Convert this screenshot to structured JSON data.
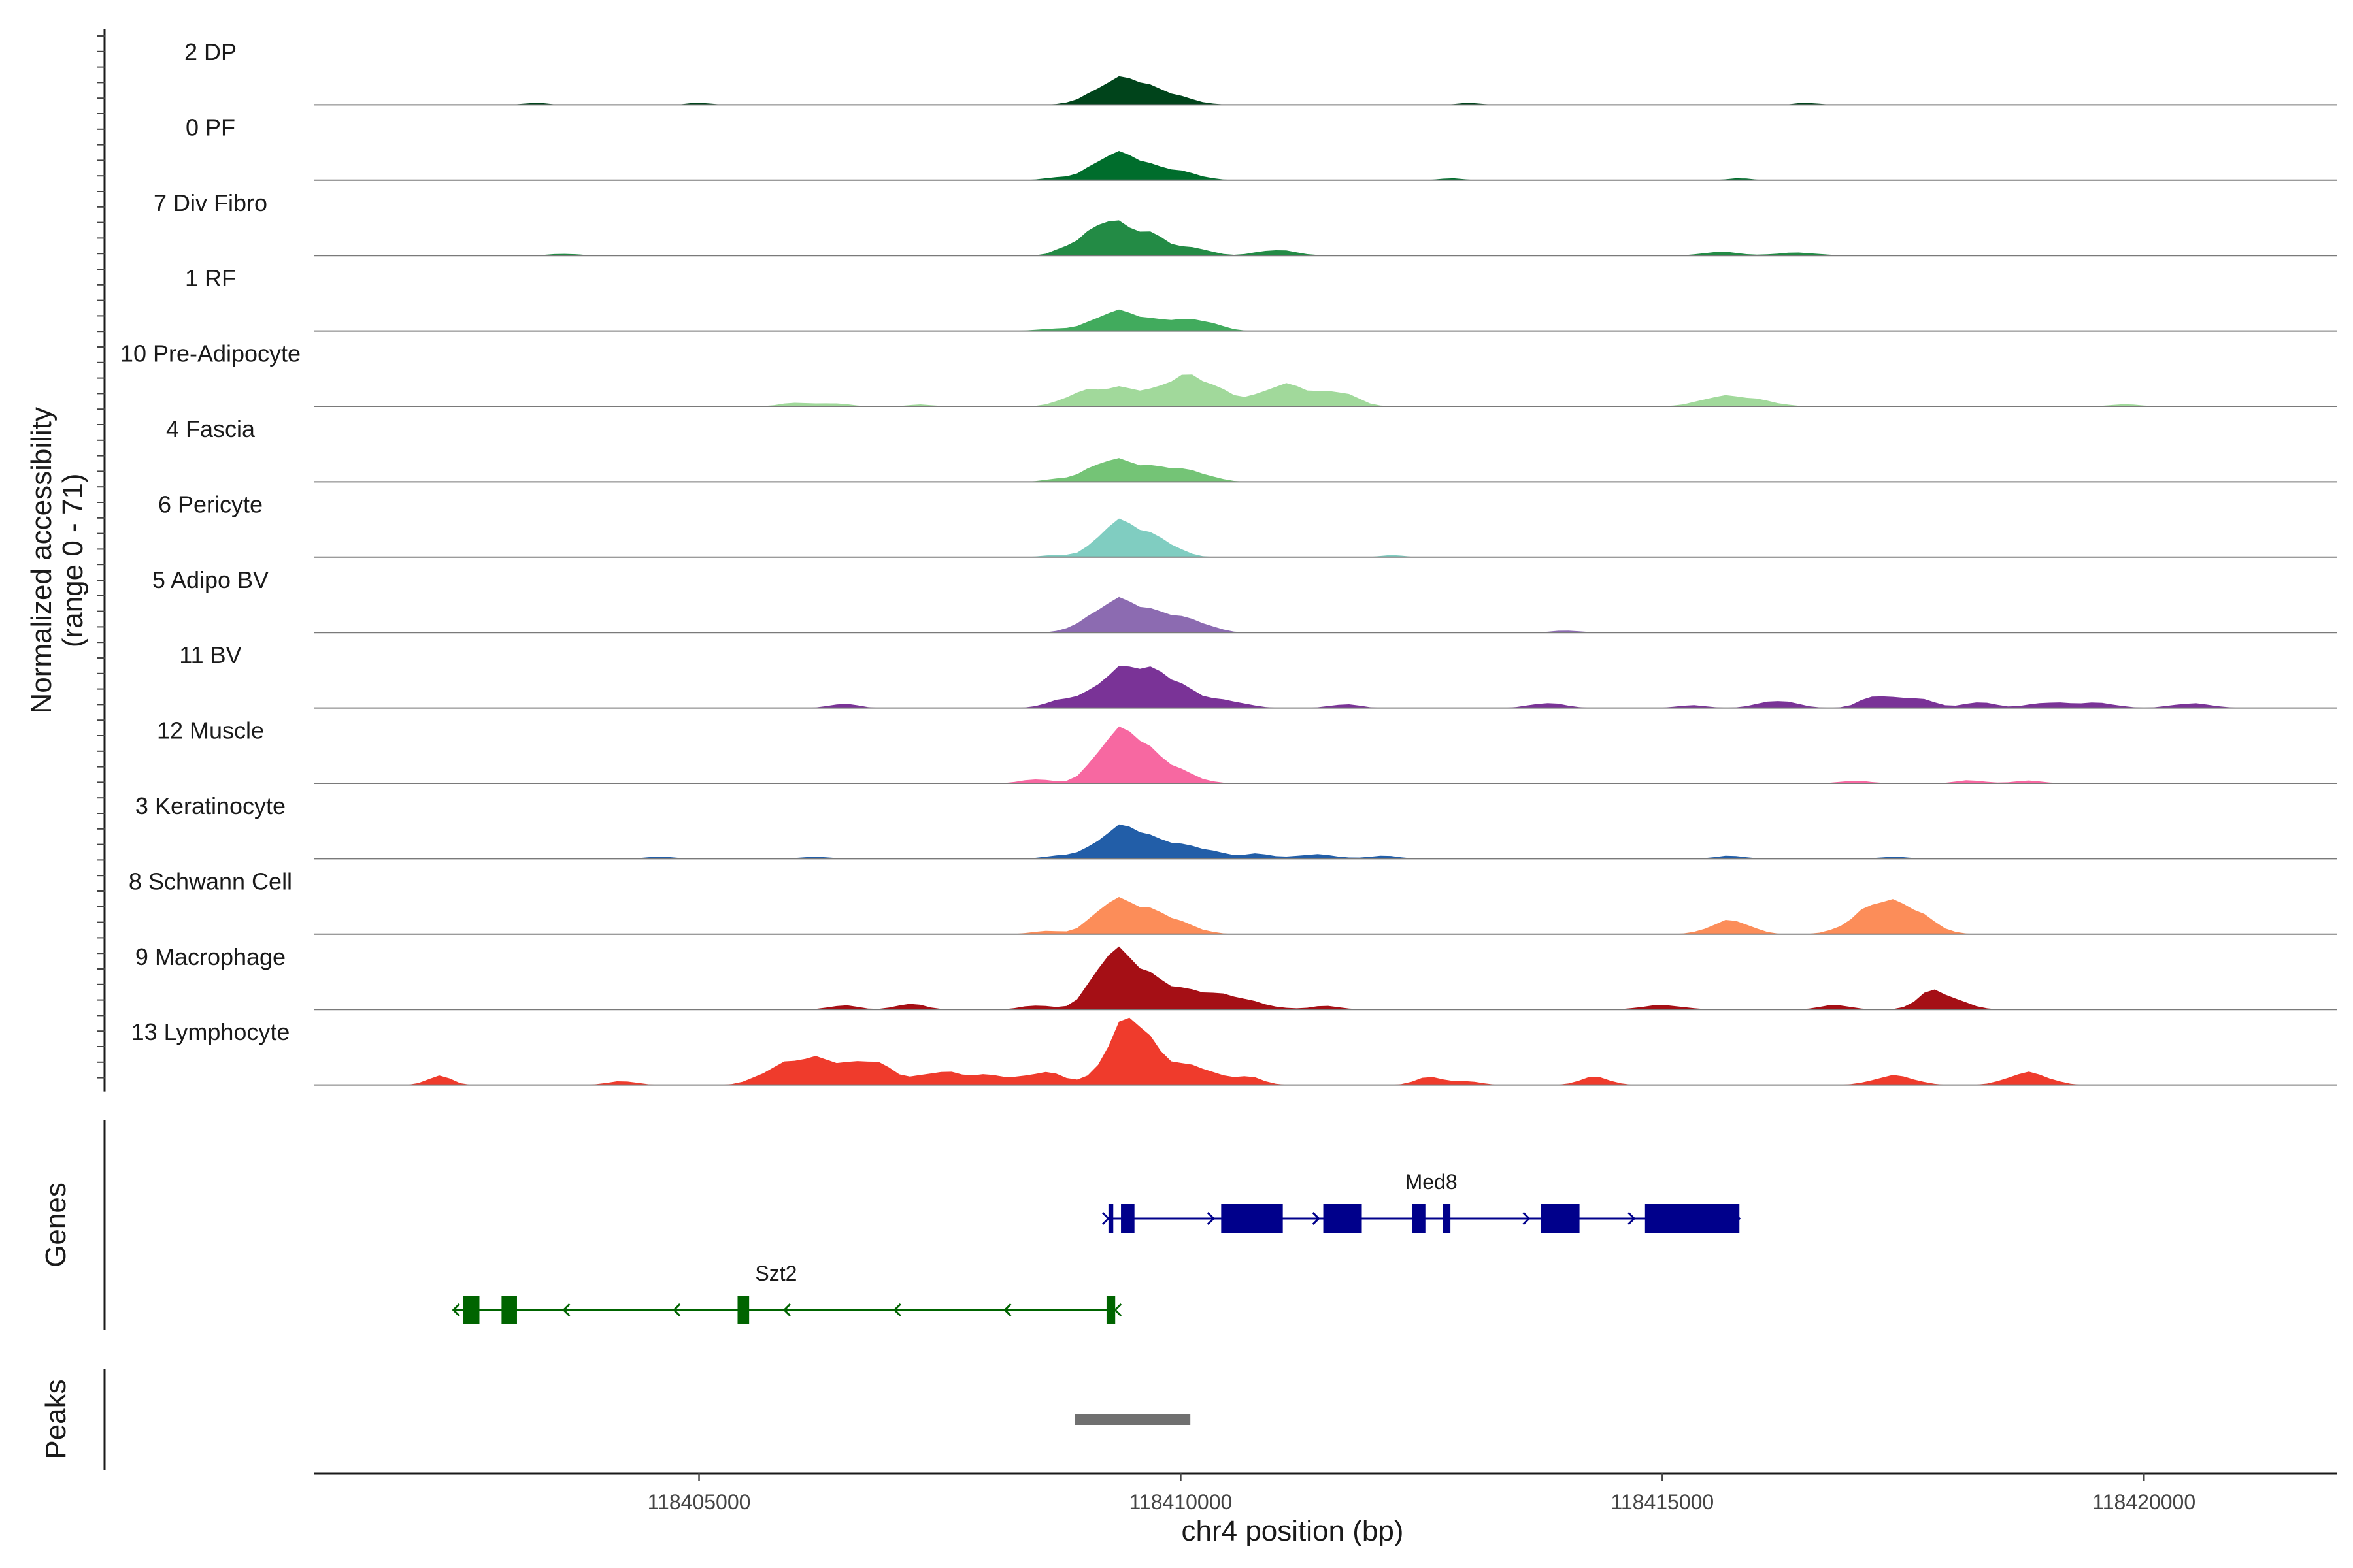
{
  "chart_data": {
    "type": "area",
    "y_axis_title": [
      "Normalized accessibility",
      "(range 0 - 71)"
    ],
    "y_range": [
      0,
      71
    ],
    "x_axis_title": "chr4 position (bp)",
    "xlim": [
      118401000,
      118422000
    ],
    "x_ticks": [
      118405000,
      118410000,
      118415000,
      118420000
    ],
    "x_tick_labels": [
      "118405000",
      "118410000",
      "118415000",
      "118420000"
    ],
    "coverage_tracks": [
      {
        "name": "2 DP",
        "color": "#00441b",
        "peaks": [
          [
            118409400,
            30,
            260
          ],
          [
            118409900,
            8,
            220
          ],
          [
            118403300,
            2,
            120
          ],
          [
            118405000,
            2,
            120
          ],
          [
            118413000,
            2,
            120
          ],
          [
            118416500,
            2,
            120
          ]
        ]
      },
      {
        "name": "0 PF",
        "color": "#006d2c",
        "peaks": [
          [
            118409350,
            30,
            240
          ],
          [
            118409900,
            10,
            240
          ],
          [
            118408700,
            2,
            150
          ],
          [
            118412800,
            2,
            120
          ],
          [
            118415800,
            2,
            120
          ]
        ]
      },
      {
        "name": "7 Div Fibro",
        "color": "#238b45",
        "peaks": [
          [
            118409250,
            38,
            220
          ],
          [
            118409700,
            20,
            180
          ],
          [
            118410150,
            7,
            160
          ],
          [
            118408800,
            5,
            120
          ],
          [
            118411000,
            6,
            200
          ],
          [
            118415600,
            4,
            180
          ],
          [
            118416400,
            3,
            220
          ],
          [
            118403600,
            2,
            150
          ]
        ]
      },
      {
        "name": "1 RF",
        "color": "#41ab5d",
        "peaks": [
          [
            118409350,
            22,
            230
          ],
          [
            118409900,
            10,
            220
          ],
          [
            118410250,
            7,
            180
          ],
          [
            118408700,
            2,
            200
          ]
        ]
      },
      {
        "name": "10 Pre-Adipocyte",
        "color": "#a1d99b",
        "peaks": [
          [
            118409000,
            14,
            200
          ],
          [
            118409400,
            18,
            200
          ],
          [
            118409900,
            18,
            220
          ],
          [
            118410100,
            16,
            180
          ],
          [
            118410400,
            12,
            180
          ],
          [
            118411100,
            24,
            250
          ],
          [
            118411650,
            14,
            180
          ],
          [
            118415600,
            10,
            220
          ],
          [
            118416000,
            5,
            200
          ],
          [
            118406000,
            4,
            150
          ],
          [
            118406400,
            3,
            150
          ],
          [
            118419800,
            2,
            150
          ],
          [
            118407300,
            2,
            120
          ]
        ]
      },
      {
        "name": "4 Fascia",
        "color": "#74c476",
        "peaks": [
          [
            118409300,
            24,
            240
          ],
          [
            118409800,
            12,
            220
          ],
          [
            118410150,
            7,
            200
          ],
          [
            118408700,
            2,
            150
          ]
        ]
      },
      {
        "name": "6 Pericyte",
        "color": "#80cdc1",
        "peaks": [
          [
            118409350,
            38,
            200
          ],
          [
            118409750,
            18,
            200
          ],
          [
            118408700,
            2,
            150
          ],
          [
            118412200,
            2,
            120
          ]
        ]
      },
      {
        "name": "5 Adipo BV",
        "color": "#8c6bb1",
        "peaks": [
          [
            118409350,
            36,
            240
          ],
          [
            118409850,
            16,
            220
          ],
          [
            118410200,
            6,
            180
          ],
          [
            118408900,
            2,
            120
          ],
          [
            118414000,
            2,
            150
          ]
        ]
      },
      {
        "name": "11 BV",
        "color": "#7a3397",
        "peaks": [
          [
            118409350,
            38,
            220
          ],
          [
            118409700,
            26,
            200
          ],
          [
            118410000,
            16,
            220
          ],
          [
            118408800,
            8,
            180
          ],
          [
            118410500,
            6,
            200
          ],
          [
            118411700,
            4,
            150
          ],
          [
            118406500,
            4,
            150
          ],
          [
            118413800,
            5,
            180
          ],
          [
            118415300,
            3,
            150
          ],
          [
            118416200,
            7,
            200
          ],
          [
            118417200,
            12,
            150
          ],
          [
            118417600,
            10,
            200
          ],
          [
            118418300,
            6,
            150
          ],
          [
            118419000,
            6,
            200
          ],
          [
            118419500,
            5,
            200
          ],
          [
            118420500,
            5,
            200
          ]
        ]
      },
      {
        "name": "12 Muscle",
        "color": "#f768a1",
        "peaks": [
          [
            118409300,
            42,
            200
          ],
          [
            118409550,
            30,
            200
          ],
          [
            118409900,
            14,
            220
          ],
          [
            118408500,
            4,
            150
          ],
          [
            118417000,
            3,
            150
          ],
          [
            118418200,
            3,
            150
          ],
          [
            118418800,
            3,
            150
          ]
        ]
      },
      {
        "name": "3 Keratinocyte",
        "color": "#225ea8",
        "peaks": [
          [
            118409400,
            36,
            230
          ],
          [
            118409900,
            14,
            220
          ],
          [
            118410300,
            6,
            180
          ],
          [
            118410800,
            5,
            150
          ],
          [
            118411400,
            5,
            200
          ],
          [
            118412100,
            3,
            150
          ],
          [
            118408800,
            3,
            200
          ],
          [
            118404600,
            2,
            150
          ],
          [
            118406200,
            2,
            150
          ],
          [
            118415700,
            3,
            150
          ],
          [
            118417400,
            2,
            150
          ]
        ]
      },
      {
        "name": "8 Schwann Cell",
        "color": "#fc8d59",
        "peaks": [
          [
            118409300,
            34,
            200
          ],
          [
            118409650,
            18,
            200
          ],
          [
            118409950,
            10,
            220
          ],
          [
            118415700,
            14,
            200
          ],
          [
            118417250,
            34,
            250
          ],
          [
            118417650,
            14,
            200
          ],
          [
            118408600,
            3,
            150
          ]
        ]
      },
      {
        "name": "9 Macrophage",
        "color": "#a50f15",
        "peaks": [
          [
            118409300,
            60,
            200
          ],
          [
            118409650,
            24,
            200
          ],
          [
            118410000,
            14,
            250
          ],
          [
            118410500,
            12,
            300
          ],
          [
            118407200,
            6,
            150
          ],
          [
            118408500,
            4,
            150
          ],
          [
            118406500,
            4,
            150
          ],
          [
            118411500,
            4,
            150
          ],
          [
            118415000,
            5,
            200
          ],
          [
            118416800,
            5,
            150
          ],
          [
            118417800,
            18,
            150
          ],
          [
            118418100,
            6,
            150
          ]
        ]
      },
      {
        "name": "13 Lymphocyte",
        "color": "#ef3b2c",
        "peaks": [
          [
            118409450,
            71,
            200
          ],
          [
            118409800,
            18,
            220
          ],
          [
            118410200,
            14,
            200
          ],
          [
            118406200,
            26,
            250
          ],
          [
            118406800,
            22,
            220
          ],
          [
            118405800,
            14,
            200
          ],
          [
            118402300,
            10,
            120
          ],
          [
            118407500,
            14,
            200
          ],
          [
            118408000,
            10,
            220
          ],
          [
            118408600,
            12,
            200
          ],
          [
            118410700,
            8,
            150
          ],
          [
            118412600,
            8,
            150
          ],
          [
            118414300,
            8,
            150
          ],
          [
            118417400,
            10,
            200
          ],
          [
            118418800,
            14,
            200
          ],
          [
            118404200,
            4,
            150
          ],
          [
            118413000,
            4,
            120
          ]
        ]
      }
    ],
    "genes_track": {
      "title": "Genes",
      "genes": [
        {
          "name": "Med8",
          "strand": "+",
          "color": "#00008b",
          "start": 118409250,
          "end": 118415800,
          "exons": [
            [
              118409250,
              118409300
            ],
            [
              118409380,
              118409520
            ],
            [
              118410420,
              118411060
            ],
            [
              118411480,
              118411880
            ],
            [
              118412400,
              118412540
            ],
            [
              118412720,
              118412800
            ],
            [
              118413740,
              118414140
            ],
            [
              118414820,
              118415800
            ]
          ]
        },
        {
          "name": "Szt2",
          "strand": "-",
          "color": "#006400",
          "start": 118402450,
          "end": 118409320,
          "exons": [
            [
              118402550,
              118402720
            ],
            [
              118402950,
              118403110
            ],
            [
              118405400,
              118405520
            ],
            [
              118409230,
              118409320
            ]
          ]
        }
      ]
    },
    "peaks_track": {
      "title": "Peaks",
      "color": "#707070",
      "regions": [
        [
          118408900,
          118410100
        ]
      ]
    }
  }
}
